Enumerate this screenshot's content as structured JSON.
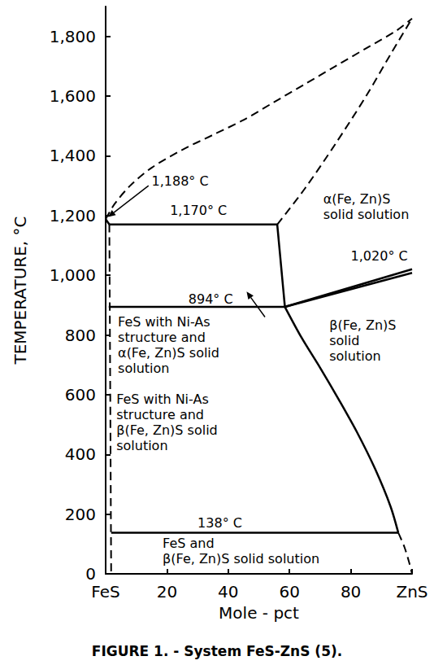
{
  "chart_data": {
    "type": "line",
    "title": "FIGURE 1. - System FeS-ZnS (5).",
    "x_label": "Mole - pct",
    "y_label": "TEMPERATURE, °C",
    "xlim": [
      0,
      100
    ],
    "ylim": [
      0,
      1900
    ],
    "xticks": [
      {
        "value": 0,
        "label": "FeS"
      },
      20,
      40,
      60,
      80,
      {
        "value": 100,
        "label": "ZnS"
      }
    ],
    "yticks": [
      0,
      200,
      400,
      600,
      800,
      {
        "value": 1000,
        "label": "1,000"
      },
      {
        "value": 1200,
        "label": "1,200"
      },
      {
        "value": 1400,
        "label": "1,400"
      },
      {
        "value": 1600,
        "label": "1,600"
      },
      {
        "value": 1800,
        "label": "1,800"
      }
    ],
    "grid": false,
    "color": "#000000",
    "series": [
      {
        "x": [
          1.2,
          56
        ],
        "values": [
          1170,
          1170
        ],
        "line_style": "solid"
      },
      {
        "x": [
          56,
          58.5
        ],
        "values": [
          1170,
          894
        ],
        "line_style": "solid"
      },
      {
        "x": [
          1,
          58.5
        ],
        "values": [
          894,
          894
        ],
        "line_style": "solid"
      },
      {
        "x": [
          58.5,
          100
        ],
        "values": [
          894,
          1020
        ],
        "line_style": "solid"
      },
      {
        "x": [
          58.5,
          100
        ],
        "values": [
          894,
          1008
        ],
        "line_style": "solid"
      },
      {
        "x": [
          58.5,
          64,
          70,
          76,
          82,
          88,
          93,
          95.5
        ],
        "values": [
          894,
          790,
          690,
          585,
          475,
          350,
          225,
          138
        ],
        "line_style": "solid"
      },
      {
        "x": [
          1.8,
          95.5
        ],
        "values": [
          138,
          138
        ],
        "line_style": "solid"
      },
      {
        "x": [
          0,
          1.2
        ],
        "values": [
          1188,
          1170
        ],
        "line_style": "solid"
      },
      {
        "x": [
          95.5,
          97.5,
          99,
          100
        ],
        "values": [
          138,
          90,
          40,
          0
        ],
        "line_style": "dashed"
      },
      {
        "x": [
          1.2,
          1.5,
          1.8
        ],
        "values": [
          1170,
          600,
          0
        ],
        "line_style": "dashed"
      },
      {
        "x": [
          0,
          3,
          8,
          15,
          25,
          35,
          45,
          55,
          65,
          75,
          85,
          95,
          100
        ],
        "values": [
          1188,
          1240,
          1300,
          1360,
          1420,
          1470,
          1520,
          1580,
          1640,
          1700,
          1760,
          1820,
          1860
        ],
        "line_style": "dashed"
      },
      {
        "x": [
          56,
          65,
          75,
          85,
          93,
          100
        ],
        "values": [
          1170,
          1290,
          1440,
          1600,
          1740,
          1860
        ],
        "line_style": "dashed"
      }
    ],
    "annotations": [
      {
        "text": "1,188° C",
        "x": 15,
        "y": 1340,
        "arrow": [
          [
            14,
            1300
          ],
          [
            0.8,
            1195
          ]
        ]
      },
      {
        "text": "1,170° C",
        "x": 21,
        "y": 1242
      },
      {
        "text": "α(Fe, Zn)S\nsolid solution",
        "x": 71,
        "y": 1280
      },
      {
        "text": "1,020° C",
        "x": 80,
        "y": 1090
      },
      {
        "text": "894° C",
        "x": 27,
        "y": 945
      },
      {
        "text": "FeS with Ni-As\nstructure and\nα(Fe, Zn)S solid\nsolution",
        "x": 4,
        "y": 870,
        "arrow": [
          [
            52,
            860
          ],
          [
            46,
            945
          ]
        ]
      },
      {
        "text": "β(Fe, Zn)S\nsolid\nsolution",
        "x": 73,
        "y": 860
      },
      {
        "text": "FeS with Ni-As\nstructure and\nβ(Fe, Zn)S solid\nsolution",
        "x": 3.5,
        "y": 610
      },
      {
        "text": "138° C",
        "x": 30,
        "y": 195
      },
      {
        "text": "FeS and\nβ(Fe, Zn)S solid solution",
        "x": 18.6,
        "y": 128
      }
    ]
  }
}
